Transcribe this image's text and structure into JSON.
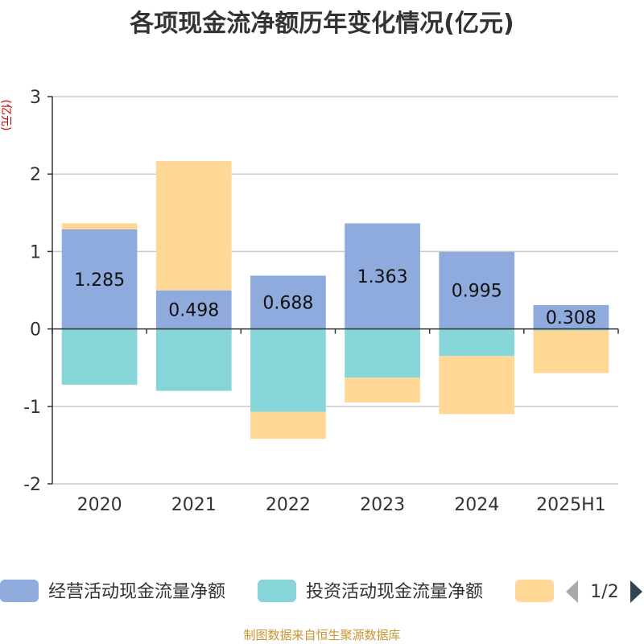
{
  "title": "各项现金流净额历年变化情况(亿元)",
  "source_note": "制图数据来自恒生聚源数据库",
  "chart_data": {
    "type": "bar",
    "stacked": true,
    "title": "各项现金流净额历年变化情况(亿元)",
    "ylabel": "(亿元)",
    "ylim": [
      -2,
      3
    ],
    "yticks": [
      3,
      2,
      1,
      0,
      -1,
      -2
    ],
    "grid": true,
    "legend_position": "bottom",
    "categories": [
      "2020",
      "2021",
      "2022",
      "2023",
      "2024",
      "2025H1"
    ],
    "series": [
      {
        "name": "经营活动现金流量净额",
        "color": "#8faadc",
        "values": [
          1.285,
          0.498,
          0.688,
          1.363,
          0.995,
          0.308
        ],
        "labels": [
          "1.285",
          "0.498",
          "0.688",
          "1.363",
          "0.995",
          "0.308"
        ]
      },
      {
        "name": "投资活动现金流量净额",
        "color": "#86d5d8",
        "values": [
          -0.72,
          -0.8,
          -1.07,
          -0.63,
          -0.35,
          -0.02
        ]
      },
      {
        "name": "",
        "color": "#ffd896",
        "values": [
          0.08,
          1.67,
          -0.35,
          -0.32,
          -0.75,
          -0.55
        ]
      }
    ],
    "legend_page": "1/2"
  }
}
